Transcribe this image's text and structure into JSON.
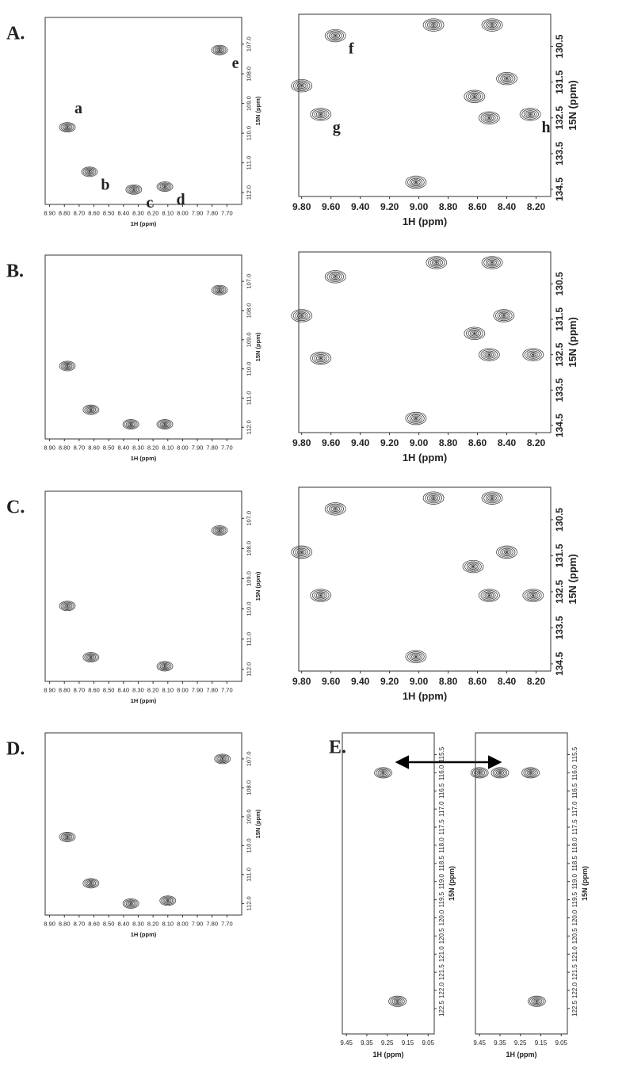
{
  "chart_data": [
    {
      "type": "contour",
      "panel": "A.",
      "x_label": "1H (ppm)",
      "y_label": "15N (ppm)",
      "color": "#444444",
      "xlim": [
        8.93,
        7.6
      ],
      "ylim": [
        106.1,
        112.4
      ],
      "xticks": [
        {
          "value": 8.9,
          "label": "8.90"
        },
        {
          "value": 8.8,
          "label": "8.80"
        },
        {
          "value": 8.7,
          "label": "8.70"
        },
        {
          "value": 8.6,
          "label": "8.60"
        },
        {
          "value": 8.5,
          "label": "8.50"
        },
        {
          "value": 8.4,
          "label": "8.40"
        },
        {
          "value": 8.3,
          "label": "8.30"
        },
        {
          "value": 8.2,
          "label": "8.20"
        },
        {
          "value": 8.1,
          "label": "8.10"
        },
        {
          "value": 8.0,
          "label": "8.00"
        },
        {
          "value": 7.9,
          "label": "7.90"
        },
        {
          "value": 7.8,
          "label": "7.80"
        },
        {
          "value": 7.7,
          "label": "7.70"
        }
      ],
      "yticks": [
        {
          "value": 107,
          "label": "107.0"
        },
        {
          "value": 108,
          "label": "108.0"
        },
        {
          "value": 109,
          "label": "109.0"
        },
        {
          "value": 110,
          "label": "110.0"
        },
        {
          "value": 111,
          "label": "111.0"
        },
        {
          "value": 112,
          "label": "112.0"
        }
      ],
      "x": [
        8.78,
        8.63,
        8.33,
        8.12,
        7.75
      ],
      "values": [
        109.8,
        111.3,
        111.9,
        111.8,
        107.2
      ],
      "labels": [
        "a",
        "b",
        "c",
        "d",
        "e"
      ]
    },
    {
      "type": "contour",
      "x_label": "1H (ppm)",
      "y_label": "15N (ppm)",
      "color": "#444444",
      "xlim": [
        9.82,
        8.1
      ],
      "ylim": [
        129.6,
        134.7
      ],
      "xticks": [
        {
          "value": 9.8,
          "label": "9.80"
        },
        {
          "value": 9.6,
          "label": "9.60"
        },
        {
          "value": 9.4,
          "label": "9.40"
        },
        {
          "value": 9.2,
          "label": "9.20"
        },
        {
          "value": 9.0,
          "label": "9.00"
        },
        {
          "value": 8.8,
          "label": "8.80"
        },
        {
          "value": 8.6,
          "label": "8.60"
        },
        {
          "value": 8.4,
          "label": "8.40"
        },
        {
          "value": 8.2,
          "label": "8.20"
        }
      ],
      "yticks": [
        130.5,
        131.5,
        132.5,
        133.5,
        134.5
      ],
      "x": [
        9.57,
        9.67,
        8.24,
        9.8,
        8.9,
        8.5,
        8.4,
        8.62,
        8.52,
        9.02
      ],
      "values": [
        130.2,
        132.4,
        132.4,
        131.6,
        129.9,
        129.9,
        131.4,
        131.9,
        132.5,
        134.3
      ],
      "labels": [
        "f",
        "g",
        "h",
        null,
        null,
        null,
        null,
        null,
        null,
        null
      ]
    },
    {
      "type": "contour",
      "panel": "B.",
      "x_label": "1H (ppm)",
      "y_label": "15N (ppm)",
      "color": "#444444",
      "xlim": [
        8.93,
        7.6
      ],
      "ylim": [
        106.1,
        112.4
      ],
      "xticks": [
        {
          "value": 8.9,
          "label": "8.90"
        },
        {
          "value": 8.8,
          "label": "8.80"
        },
        {
          "value": 8.7,
          "label": "8.70"
        },
        {
          "value": 8.6,
          "label": "8.60"
        },
        {
          "value": 8.5,
          "label": "8.50"
        },
        {
          "value": 8.4,
          "label": "8.40"
        },
        {
          "value": 8.3,
          "label": "8.30"
        },
        {
          "value": 8.2,
          "label": "8.20"
        },
        {
          "value": 8.1,
          "label": "8.10"
        },
        {
          "value": 8.0,
          "label": "8.00"
        },
        {
          "value": 7.9,
          "label": "7.90"
        },
        {
          "value": 7.8,
          "label": "7.80"
        },
        {
          "value": 7.7,
          "label": "7.70"
        }
      ],
      "yticks": [
        {
          "value": 107,
          "label": "107.0"
        },
        {
          "value": 108,
          "label": "108.0"
        },
        {
          "value": 109,
          "label": "109.0"
        },
        {
          "value": 110,
          "label": "110.0"
        },
        {
          "value": 111,
          "label": "111.0"
        },
        {
          "value": 112,
          "label": "112.0"
        }
      ],
      "x": [
        8.78,
        8.62,
        8.35,
        8.12,
        7.75
      ],
      "values": [
        109.9,
        111.4,
        111.9,
        111.9,
        107.3
      ]
    },
    {
      "type": "contour",
      "x_label": "1H (ppm)",
      "y_label": "15N (ppm)",
      "color": "#444444",
      "xlim": [
        9.82,
        8.1
      ],
      "ylim": [
        129.6,
        134.7
      ],
      "xticks": [
        {
          "value": 9.8,
          "label": "9.80"
        },
        {
          "value": 9.6,
          "label": "9.60"
        },
        {
          "value": 9.4,
          "label": "9.40"
        },
        {
          "value": 9.2,
          "label": "9.20"
        },
        {
          "value": 9.0,
          "label": "9.00"
        },
        {
          "value": 8.8,
          "label": "8.80"
        },
        {
          "value": 8.6,
          "label": "8.60"
        },
        {
          "value": 8.4,
          "label": "8.40"
        },
        {
          "value": 8.2,
          "label": "8.20"
        }
      ],
      "yticks": [
        130.5,
        131.5,
        132.5,
        133.5,
        134.5
      ],
      "x": [
        9.57,
        9.67,
        9.8,
        8.88,
        8.5,
        8.42,
        8.62,
        8.52,
        8.22,
        9.02
      ],
      "values": [
        130.3,
        132.6,
        131.4,
        129.9,
        129.9,
        131.4,
        131.9,
        132.5,
        132.5,
        134.3
      ]
    },
    {
      "type": "contour",
      "panel": "C.",
      "x_label": "1H (ppm)",
      "y_label": "15N (ppm)",
      "color": "#444444",
      "xlim": [
        8.93,
        7.6
      ],
      "ylim": [
        106.1,
        112.4
      ],
      "xticks": [
        {
          "value": 8.9,
          "label": "8.90"
        },
        {
          "value": 8.8,
          "label": "8.80"
        },
        {
          "value": 8.7,
          "label": "8.70"
        },
        {
          "value": 8.6,
          "label": "8.60"
        },
        {
          "value": 8.5,
          "label": "8.50"
        },
        {
          "value": 8.4,
          "label": "8.40"
        },
        {
          "value": 8.3,
          "label": "8.30"
        },
        {
          "value": 8.2,
          "label": "8.20"
        },
        {
          "value": 8.1,
          "label": "8.10"
        },
        {
          "value": 8.0,
          "label": "8.00"
        },
        {
          "value": 7.9,
          "label": "7.90"
        },
        {
          "value": 7.8,
          "label": "7.80"
        },
        {
          "value": 7.7,
          "label": "7.70"
        }
      ],
      "yticks": [
        {
          "value": 107,
          "label": "107.0"
        },
        {
          "value": 108,
          "label": "108.0"
        },
        {
          "value": 109,
          "label": "109.0"
        },
        {
          "value": 110,
          "label": "110.0"
        },
        {
          "value": 111,
          "label": "111.0"
        },
        {
          "value": 112,
          "label": "112.0"
        }
      ],
      "x": [
        8.78,
        8.62,
        8.12,
        7.75
      ],
      "values": [
        109.9,
        111.6,
        111.9,
        107.4
      ]
    },
    {
      "type": "contour",
      "x_label": "1H (ppm)",
      "y_label": "15N (ppm)",
      "color": "#444444",
      "xlim": [
        9.82,
        8.1
      ],
      "ylim": [
        129.6,
        134.7
      ],
      "xticks": [
        {
          "value": 9.8,
          "label": "9.80"
        },
        {
          "value": 9.6,
          "label": "9.60"
        },
        {
          "value": 9.4,
          "label": "9.40"
        },
        {
          "value": 9.2,
          "label": "9.20"
        },
        {
          "value": 9.0,
          "label": "9.00"
        },
        {
          "value": 8.8,
          "label": "8.80"
        },
        {
          "value": 8.6,
          "label": "8.60"
        },
        {
          "value": 8.4,
          "label": "8.40"
        },
        {
          "value": 8.2,
          "label": "8.20"
        }
      ],
      "yticks": [
        130.5,
        131.5,
        132.5,
        133.5,
        134.5
      ],
      "x": [
        9.57,
        9.67,
        9.8,
        8.9,
        8.5,
        8.4,
        8.63,
        8.52,
        8.22,
        9.02
      ],
      "values": [
        130.2,
        132.6,
        131.4,
        129.9,
        129.9,
        131.4,
        131.8,
        132.6,
        132.6,
        134.3
      ]
    },
    {
      "type": "contour",
      "panel": "D.",
      "x_label": "1H (ppm)",
      "y_label": "15N (ppm)",
      "color": "#444444",
      "xlim": [
        8.93,
        7.6
      ],
      "ylim": [
        106.1,
        112.4
      ],
      "xticks": [
        {
          "value": 8.9,
          "label": "8.90"
        },
        {
          "value": 8.8,
          "label": "8.80"
        },
        {
          "value": 8.7,
          "label": "8.70"
        },
        {
          "value": 8.6,
          "label": "8.60"
        },
        {
          "value": 8.5,
          "label": "8.50"
        },
        {
          "value": 8.4,
          "label": "8.40"
        },
        {
          "value": 8.3,
          "label": "8.30"
        },
        {
          "value": 8.2,
          "label": "8.20"
        },
        {
          "value": 8.1,
          "label": "8.10"
        },
        {
          "value": 8.0,
          "label": "8.00"
        },
        {
          "value": 7.9,
          "label": "7.90"
        },
        {
          "value": 7.8,
          "label": "7.80"
        },
        {
          "value": 7.7,
          "label": "7.70"
        }
      ],
      "yticks": [
        {
          "value": 107,
          "label": "107.0"
        },
        {
          "value": 108,
          "label": "108.0"
        },
        {
          "value": 109,
          "label": "109.0"
        },
        {
          "value": 110,
          "label": "110.0"
        },
        {
          "value": 111,
          "label": "111.0"
        },
        {
          "value": 112,
          "label": "112.0"
        }
      ],
      "x": [
        8.78,
        8.62,
        8.35,
        8.1,
        7.73
      ],
      "values": [
        109.7,
        111.3,
        112.0,
        111.9,
        107.0
      ]
    },
    {
      "type": "contour",
      "panel": "E.",
      "x_label": "1H (ppm)",
      "y_label": "15N (ppm)",
      "color": "#444444",
      "xlim": [
        9.47,
        9.02
      ],
      "ylim": [
        114.9,
        123.2
      ],
      "xticks": [
        9.45,
        9.35,
        9.25,
        9.15,
        9.05
      ],
      "yticks": [
        115.5,
        {
          "value": 116,
          "label": "116.0"
        },
        116.5,
        {
          "value": 117,
          "label": "117.0"
        },
        117.5,
        {
          "value": 118,
          "label": "118.0"
        },
        118.5,
        {
          "value": 119,
          "label": "119.0"
        },
        119.5,
        {
          "value": 120,
          "label": "120.0"
        },
        120.5,
        {
          "value": 121,
          "label": "121.0"
        },
        121.5,
        {
          "value": 122,
          "label": "122.0"
        },
        122.5
      ],
      "x": [
        9.27,
        9.2
      ],
      "values": [
        116.0,
        122.3
      ]
    },
    {
      "type": "contour",
      "x_label": "1H (ppm)",
      "y_label": "15N (ppm)",
      "color": "#444444",
      "xlim": [
        9.47,
        9.02
      ],
      "ylim": [
        114.9,
        123.2
      ],
      "xticks": [
        9.45,
        9.35,
        9.25,
        9.15,
        9.05
      ],
      "yticks": [
        115.5,
        {
          "value": 116,
          "label": "116.0"
        },
        116.5,
        {
          "value": 117,
          "label": "117.0"
        },
        117.5,
        {
          "value": 118,
          "label": "118.0"
        },
        118.5,
        {
          "value": 119,
          "label": "119.0"
        },
        119.5,
        {
          "value": 120,
          "label": "120.0"
        },
        120.5,
        {
          "value": 121,
          "label": "121.0"
        },
        121.5,
        {
          "value": 122,
          "label": "122.0"
        },
        122.5
      ],
      "x": [
        9.45,
        9.35,
        9.2,
        9.17
      ],
      "values": [
        116.0,
        116.0,
        116.0,
        122.3
      ]
    }
  ]
}
